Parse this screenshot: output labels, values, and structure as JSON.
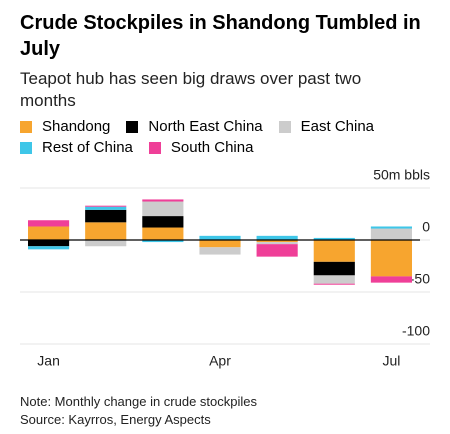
{
  "chart_data": {
    "type": "bar",
    "stacked": true,
    "title": "Crude Stockpiles in Shandong Tumbled in July",
    "subtitle": "Teapot hub has seen big draws over past two months",
    "categories": [
      "Jan",
      null,
      null,
      "Apr",
      null,
      null,
      "Jul"
    ],
    "series": [
      {
        "name": "Shandong",
        "color": "#f7a52f",
        "values": [
          13,
          17,
          12,
          -7,
          -2,
          -21,
          -35
        ]
      },
      {
        "name": "North East China",
        "color": "#000000",
        "values": [
          -6,
          12,
          11,
          0,
          0,
          -13,
          0
        ]
      },
      {
        "name": "East China",
        "color": "#cccccc",
        "values": [
          0,
          -6,
          14,
          -7,
          -2,
          -8,
          11
        ]
      },
      {
        "name": "Rest of China",
        "color": "#3ec6e8",
        "values": [
          -3,
          3,
          -2,
          4,
          4,
          2,
          2
        ]
      },
      {
        "name": "South China",
        "color": "#ef3f98",
        "values": [
          6,
          1,
          2,
          0,
          -12,
          -1,
          -6
        ]
      }
    ],
    "ylim": [
      -100,
      50
    ],
    "yticks": [
      {
        "value": 50,
        "label": "50m bbls"
      },
      0,
      -50,
      -100
    ],
    "grid": true,
    "note": "Note: Monthly change in crude stockpiles",
    "source": "Source: Kayrros, Energy Aspects"
  }
}
